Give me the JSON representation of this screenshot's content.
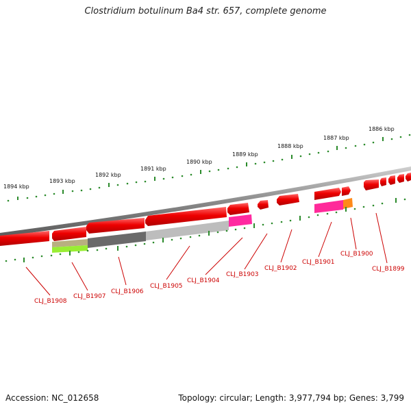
{
  "title": "Clostridium botulinum Ba4 str. 657, complete genome",
  "footer": {
    "accession": "Accession: NC_012658",
    "summary": "Topology: circular; Length: 3,977,794 bp; Genes: 3,799"
  },
  "kbp_labels": [
    "1894 kbp",
    "1893 kbp",
    "1892 kbp",
    "1891 kbp",
    "1890 kbp",
    "1889 kbp",
    "1888 kbp",
    "1887 kbp",
    "1886 kbp"
  ],
  "gene_labels": [
    "CLJ_B1908",
    "CLJ_B1907",
    "CLJ_B1906",
    "CLJ_B1905",
    "CLJ_B1904",
    "CLJ_B1903",
    "CLJ_B1902",
    "CLJ_B1901",
    "CLJ_B1900",
    "CLJ_B1899"
  ],
  "colors": {
    "gene_red": "#ee0000",
    "label_red": "#cc0000",
    "tick_green": "#2a8a2a",
    "backbone": "#888888"
  }
}
